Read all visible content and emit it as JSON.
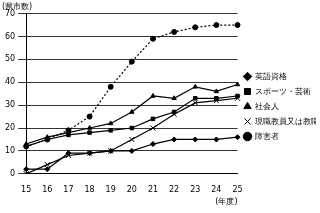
{
  "chart_data": {
    "type": "line",
    "y_label": "(県市数)",
    "x_label": "(年度)",
    "categories": [
      "15",
      "16",
      "17",
      "18",
      "19",
      "20",
      "21",
      "22",
      "23",
      "24",
      "25"
    ],
    "series": [
      {
        "name": "英語資格",
        "color": "#000000",
        "marker": "diamond",
        "line_style": "solid",
        "values": [
          2,
          2,
          9,
          9,
          10,
          10,
          13,
          15,
          15,
          15,
          16
        ]
      },
      {
        "name": "スポーツ・芸術",
        "color": "#000000",
        "marker": "square",
        "line_style": "solid",
        "values": [
          12,
          15,
          17,
          18,
          19,
          20,
          24,
          27,
          33,
          33,
          34
        ]
      },
      {
        "name": "社会人",
        "color": "#000000",
        "marker": "triangle",
        "line_style": "solid",
        "values": [
          13,
          16,
          18,
          20,
          22,
          27,
          34,
          33,
          38,
          36,
          39
        ]
      },
      {
        "name": "現職教員又は教職経験",
        "color": "#000000",
        "marker": "x",
        "line_style": "solid",
        "values": [
          0,
          4,
          8,
          9,
          10,
          15,
          20,
          26,
          31,
          32,
          33
        ]
      },
      {
        "name": "障害者",
        "color": "#000000",
        "marker": "circle",
        "line_style": "dotted",
        "values": [
          12,
          15,
          19,
          25,
          38,
          49,
          59,
          62,
          64,
          65,
          65
        ]
      }
    ],
    "ylim": [
      0,
      70
    ],
    "yticks": [
      0,
      10,
      20,
      30,
      40,
      50,
      60,
      70
    ],
    "grid": true,
    "legend": "right"
  }
}
